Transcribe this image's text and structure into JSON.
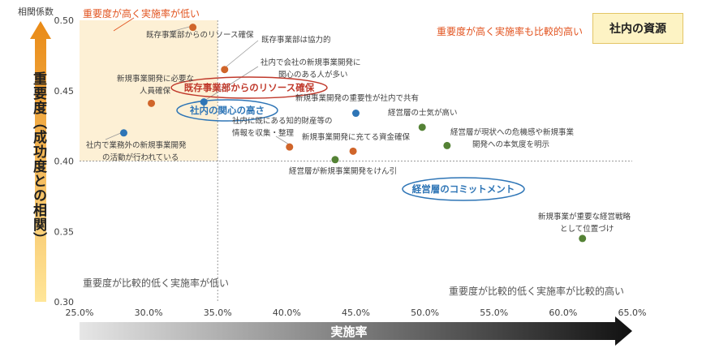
{
  "chart_data": {
    "type": "scatter",
    "title": "",
    "xlabel": "実施率",
    "ylabel": "重要度（成功度との相関）",
    "ylabel_axis": "相関係数",
    "xlim": [
      25.0,
      65.0
    ],
    "ylim": [
      0.3,
      0.5
    ],
    "xticks": [
      "25.0%",
      "30.0%",
      "35.0%",
      "40.0%",
      "45.0%",
      "50.0%",
      "55.0%",
      "60.0%",
      "65.0%"
    ],
    "yticks": [
      "0.30",
      "0.35",
      "0.40",
      "0.45",
      "0.50"
    ],
    "reference_lines": {
      "x": 35.0,
      "y": 0.4
    },
    "highlight_quadrant": "top-left",
    "source_box": "社内の資源",
    "quadrant_labels": {
      "top_left": "重要度が高く実施率が低い",
      "top_right": "重要度が高く実施率も比較的高い",
      "bottom_left": "重要度が比較的低く実施率が低い",
      "bottom_right": "重要度が比較的低く実施率が比較的高い"
    },
    "colors": {
      "orange": "#d0652a",
      "blue": "#2e75b6",
      "green": "#548235",
      "quadrant_fill": "#fdf0d5",
      "arrow_top": "#e98a16",
      "arrow_bottom": "#ffe699"
    },
    "points": [
      {
        "label": "既存事業部からのリソース確保",
        "x": 33.2,
        "y": 0.495,
        "group": "orange"
      },
      {
        "label": "既存事業部は協力的",
        "x": 35.5,
        "y": 0.465,
        "group": "orange"
      },
      {
        "label": "新規事業開発に必要な人員確保",
        "x": 30.2,
        "y": 0.441,
        "group": "orange"
      },
      {
        "label": "社内で会社の新規事業開発に関心のある人が多い",
        "x": 34.0,
        "y": 0.442,
        "group": "blue"
      },
      {
        "label": "社内で業務外の新規事業開発の活動が行われている",
        "x": 28.2,
        "y": 0.42,
        "group": "blue"
      },
      {
        "label": "新規事業開発の重要性が社内で共有",
        "x": 45.0,
        "y": 0.434,
        "group": "blue"
      },
      {
        "label": "社内に既にある知的財産等の情報を収集・整理",
        "x": 40.2,
        "y": 0.41,
        "group": "orange"
      },
      {
        "label": "新規事業開発に充てる資金確保",
        "x": 44.8,
        "y": 0.407,
        "group": "orange"
      },
      {
        "label": "経営層が新規事業開発をけん引",
        "x": 43.5,
        "y": 0.401,
        "group": "green"
      },
      {
        "label": "経営層の士気が高い",
        "x": 49.8,
        "y": 0.424,
        "group": "green"
      },
      {
        "label": "経営層が現状への危機感や新規事業開発への本気度を明示",
        "x": 51.6,
        "y": 0.411,
        "group": "green"
      },
      {
        "label": "新規事業が重要な経営戦略として位置づけ",
        "x": 61.4,
        "y": 0.345,
        "group": "green"
      }
    ],
    "point_label_lines": [
      [
        "既存事業部からのリソース確保"
      ],
      [
        "既存事業部は協力的"
      ],
      [
        "新規事業開発に必要な",
        "人員確保"
      ],
      [
        "社内で会社の新規事業開発に",
        "関心のある人が多い"
      ],
      [
        "社内で業務外の新規事業開発",
        "の活動が行われている"
      ],
      [
        "新規事業開発の重要性が社内で共有"
      ],
      [
        "社内に既にある知的財産等の",
        "情報を収集・整理"
      ],
      [
        "新規事業開発に充てる資金確保"
      ],
      [
        "経営層が新規事業開発をけん引"
      ],
      [
        "経営層の士気が高い"
      ],
      [
        "経営層が現状への危機感や新規事業",
        "開発への本気度を明示"
      ],
      [
        "新規事業が重要な経営戦略",
        "として位置づけ"
      ]
    ],
    "callouts": [
      {
        "text": "既存事業部からのリソース確保",
        "color": "#c0392b"
      },
      {
        "text": "社内の関心の高さ",
        "color": "#2e75b6"
      },
      {
        "text": "経営層のコミットメント",
        "color": "#2e75b6"
      }
    ]
  }
}
